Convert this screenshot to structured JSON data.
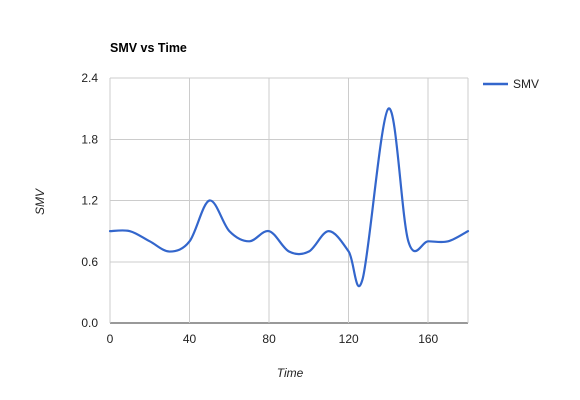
{
  "chart_data": {
    "type": "line",
    "title": "SMV vs Time",
    "xlabel": "Time",
    "ylabel": "SMV",
    "xlim": [
      0,
      180
    ],
    "ylim": [
      0,
      2.4
    ],
    "xticks": [
      0,
      40,
      80,
      120,
      160
    ],
    "xtick_labels": [
      "0",
      "40",
      "80",
      "120",
      "160"
    ],
    "yticks": [
      0,
      0.6,
      1.2,
      1.8,
      2.4
    ],
    "ytick_labels": [
      "0.0",
      "0.6",
      "1.2",
      "1.8",
      "2.4"
    ],
    "grid": true,
    "legend_position": "right",
    "series": [
      {
        "name": "SMV",
        "color": "#3366cc",
        "x": [
          0,
          10,
          20,
          30,
          40,
          50,
          60,
          70,
          80,
          90,
          100,
          110,
          120,
          127,
          140,
          150,
          160,
          170,
          180
        ],
        "y": [
          0.9,
          0.9,
          0.8,
          0.7,
          0.8,
          1.2,
          0.9,
          0.8,
          0.9,
          0.7,
          0.7,
          0.9,
          0.7,
          0.43,
          2.1,
          0.8,
          0.8,
          0.8,
          0.9
        ]
      }
    ]
  }
}
